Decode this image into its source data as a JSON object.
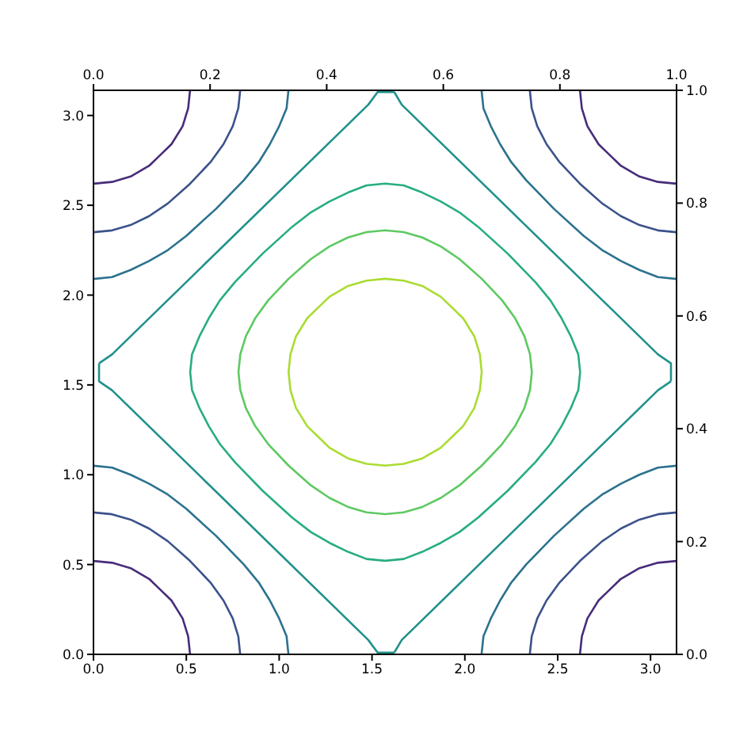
{
  "chart_data": {
    "type": "line",
    "xlim": [
      0,
      3.14
    ],
    "ylim": [
      0,
      3.14
    ],
    "xticks": [
      {
        "value": 0,
        "label": "0.0"
      },
      0.5,
      {
        "value": 1,
        "label": "1.0"
      },
      1.5,
      {
        "value": 2,
        "label": "2.0"
      },
      2.5,
      {
        "value": 3,
        "label": "3.0"
      }
    ],
    "yticks": [
      {
        "value": 0,
        "label": "0.0"
      },
      0.5,
      {
        "value": 1,
        "label": "1.0"
      },
      1.5,
      {
        "value": 2,
        "label": "2.0"
      },
      2.5,
      {
        "value": 3,
        "label": "3.0"
      }
    ],
    "x2lim": [
      0,
      1
    ],
    "x2ticks": [
      {
        "value": 0,
        "label": "0.0"
      },
      0.2,
      0.4,
      0.6,
      0.8,
      {
        "value": 1,
        "label": "1.0"
      }
    ],
    "y2lim": [
      0,
      1
    ],
    "y2ticks": [
      {
        "value": 0,
        "label": "0.0"
      },
      0.2,
      0.4,
      0.6,
      0.8,
      {
        "value": 1,
        "label": "1.0"
      }
    ],
    "series": [
      {
        "color": "#472c7a",
        "x": [
          0,
          0.1,
          0.2,
          0.3,
          0.36,
          0.42,
          0.48,
          0.51,
          0.52
        ],
        "values": [
          0.52,
          0.51,
          0.48,
          0.42,
          0.36,
          0.3,
          0.2,
          0.1,
          0
        ]
      },
      {
        "color": "#472c7a",
        "x": [
          3.14,
          3.04,
          2.94,
          2.84,
          2.78,
          2.72,
          2.66,
          2.63,
          2.62
        ],
        "values": [
          0.52,
          0.51,
          0.48,
          0.42,
          0.36,
          0.3,
          0.2,
          0.1,
          0
        ]
      },
      {
        "color": "#472c7a",
        "x": [
          0,
          0.1,
          0.2,
          0.3,
          0.36,
          0.42,
          0.48,
          0.51,
          0.52
        ],
        "values": [
          2.62,
          2.63,
          2.66,
          2.72,
          2.78,
          2.84,
          2.94,
          3.04,
          3.14
        ]
      },
      {
        "color": "#472c7a",
        "x": [
          3.14,
          3.04,
          2.94,
          2.84,
          2.78,
          2.72,
          2.66,
          2.63,
          2.62
        ],
        "values": [
          2.62,
          2.63,
          2.66,
          2.72,
          2.78,
          2.84,
          2.94,
          3.04,
          3.14
        ]
      },
      {
        "color": "#3b528b",
        "x": [
          0,
          0.1,
          0.2,
          0.3,
          0.4,
          0.52,
          0.63,
          0.7,
          0.75,
          0.78,
          0.79
        ],
        "values": [
          0.79,
          0.78,
          0.75,
          0.7,
          0.63,
          0.52,
          0.4,
          0.3,
          0.2,
          0.1,
          0
        ]
      },
      {
        "color": "#3b528b",
        "x": [
          3.14,
          3.04,
          2.94,
          2.84,
          2.74,
          2.62,
          2.51,
          2.44,
          2.39,
          2.36,
          2.35
        ],
        "values": [
          0.79,
          0.78,
          0.75,
          0.7,
          0.63,
          0.52,
          0.4,
          0.3,
          0.2,
          0.1,
          0
        ]
      },
      {
        "color": "#3b528b",
        "x": [
          0,
          0.1,
          0.2,
          0.3,
          0.4,
          0.52,
          0.63,
          0.7,
          0.75,
          0.78,
          0.79
        ],
        "values": [
          2.35,
          2.36,
          2.39,
          2.44,
          2.51,
          2.62,
          2.74,
          2.84,
          2.94,
          3.04,
          3.14
        ]
      },
      {
        "color": "#3b528b",
        "x": [
          3.14,
          3.04,
          2.94,
          2.84,
          2.74,
          2.62,
          2.51,
          2.44,
          2.39,
          2.36,
          2.35
        ],
        "values": [
          2.35,
          2.36,
          2.39,
          2.44,
          2.51,
          2.62,
          2.74,
          2.84,
          2.94,
          3.04,
          3.14
        ]
      },
      {
        "color": "#2c728e",
        "x": [
          0,
          0.1,
          0.2,
          0.3,
          0.4,
          0.5,
          0.66,
          0.81,
          0.89,
          0.95,
          1.0,
          1.04,
          1.05
        ],
        "values": [
          1.05,
          1.04,
          1.0,
          0.95,
          0.89,
          0.81,
          0.66,
          0.5,
          0.4,
          0.3,
          0.2,
          0.1,
          0
        ]
      },
      {
        "color": "#2c728e",
        "x": [
          3.14,
          3.04,
          2.94,
          2.84,
          2.74,
          2.64,
          2.48,
          2.33,
          2.25,
          2.19,
          2.14,
          2.1,
          2.09
        ],
        "values": [
          1.05,
          1.04,
          1.0,
          0.95,
          0.89,
          0.81,
          0.66,
          0.5,
          0.4,
          0.3,
          0.2,
          0.1,
          0
        ]
      },
      {
        "color": "#2c728e",
        "x": [
          0,
          0.1,
          0.2,
          0.3,
          0.4,
          0.5,
          0.66,
          0.81,
          0.89,
          0.95,
          1.0,
          1.04,
          1.05
        ],
        "values": [
          2.09,
          2.1,
          2.14,
          2.19,
          2.25,
          2.33,
          2.48,
          2.64,
          2.74,
          2.84,
          2.94,
          3.04,
          3.14
        ]
      },
      {
        "color": "#2c728e",
        "x": [
          3.14,
          3.04,
          2.94,
          2.84,
          2.74,
          2.64,
          2.48,
          2.33,
          2.25,
          2.19,
          2.14,
          2.1,
          2.09
        ],
        "values": [
          2.09,
          2.1,
          2.14,
          2.19,
          2.25,
          2.33,
          2.48,
          2.64,
          2.74,
          2.84,
          2.94,
          3.04,
          3.14
        ]
      },
      {
        "color": "#21918c",
        "x": [
          1.62,
          1.53,
          1.48,
          0.1,
          0.03,
          0.03
        ],
        "values": [
          0.01,
          0.01,
          0.08,
          1.47,
          1.52,
          1.62
        ]
      },
      {
        "color": "#21918c",
        "x": [
          0.03,
          0.1,
          1.48,
          1.53,
          1.62
        ],
        "values": [
          1.62,
          1.67,
          3.06,
          3.13,
          3.13
        ]
      },
      {
        "color": "#21918c",
        "x": [
          1.62,
          1.66,
          3.04,
          3.11,
          3.11
        ],
        "values": [
          3.13,
          3.06,
          1.67,
          1.62,
          1.52
        ]
      },
      {
        "color": "#21918c",
        "x": [
          3.11,
          3.04,
          1.66,
          1.62
        ],
        "values": [
          1.52,
          1.47,
          0.08,
          0.01
        ]
      }
    ]
  }
}
